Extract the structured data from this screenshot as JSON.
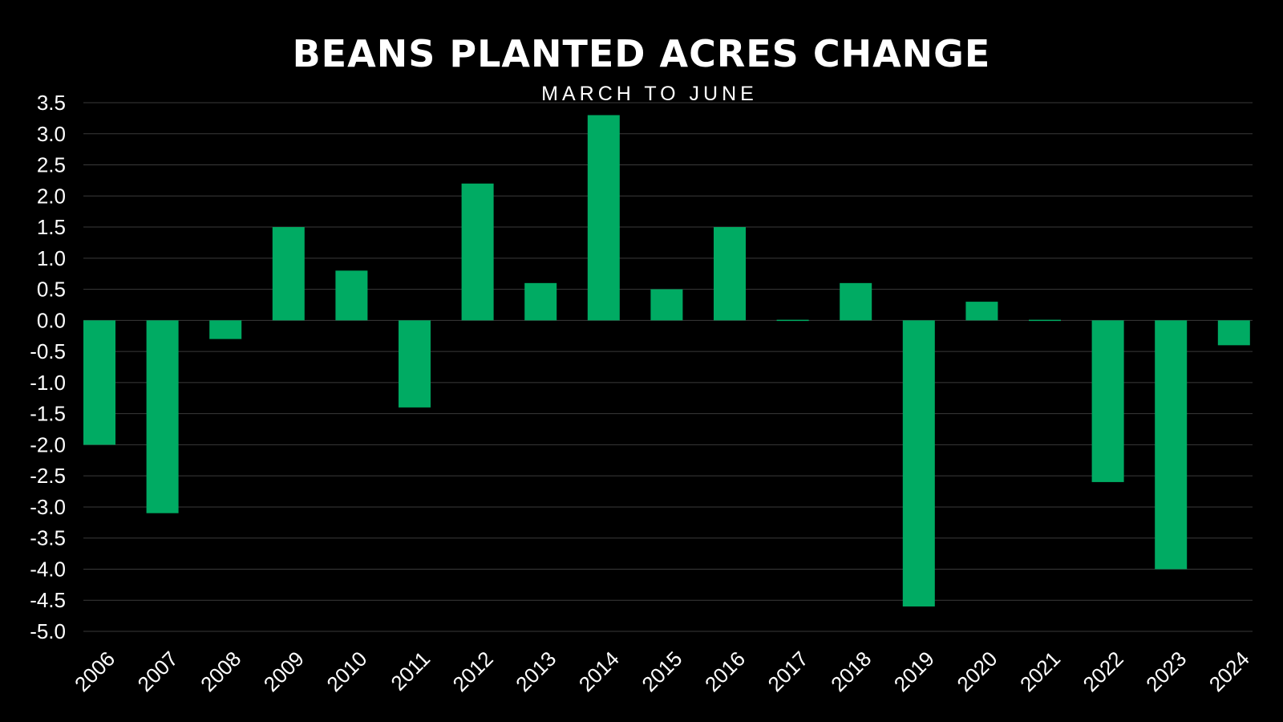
{
  "chart_data": {
    "type": "bar",
    "title": "BEANS PLANTED ACRES CHANGE",
    "subtitle": "MARCH TO JUNE",
    "xlabel": "",
    "ylabel": "",
    "categories": [
      "2006",
      "2007",
      "2008",
      "2009",
      "2010",
      "2011",
      "2012",
      "2013",
      "2014",
      "2015",
      "2016",
      "2017",
      "2018",
      "2019",
      "2020",
      "2021",
      "2022",
      "2023",
      "2024"
    ],
    "values": [
      -2.0,
      -3.1,
      -0.3,
      1.5,
      0.8,
      -1.4,
      2.2,
      0.6,
      3.3,
      0.5,
      1.5,
      0.0,
      0.6,
      -4.6,
      0.3,
      0.0,
      -2.6,
      -4.0,
      -0.4
    ],
    "ylim": [
      -5.0,
      3.5
    ],
    "yticks": [
      "3.5",
      "3.0",
      "2.5",
      "2.0",
      "1.5",
      "1.0",
      "0.5",
      "0.0",
      "-0.5",
      "-1.0",
      "-1.5",
      "-2.0",
      "-2.5",
      "-3.0",
      "-3.5",
      "-4.0",
      "-4.5",
      "-5.0"
    ],
    "grid": true,
    "legend": "none",
    "colors": {
      "bar": "#00AB63",
      "background": "#000000",
      "grid": "#3a3a3a",
      "text": "#ffffff"
    }
  }
}
